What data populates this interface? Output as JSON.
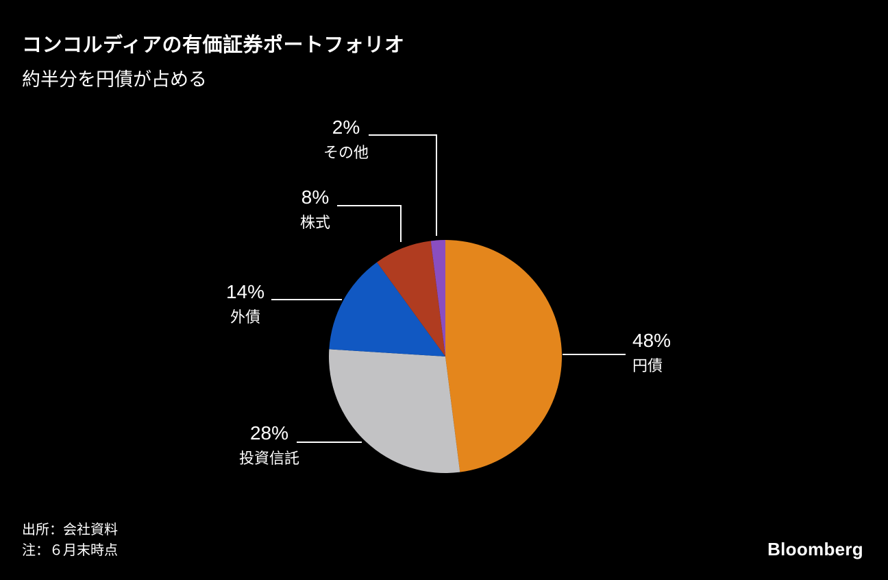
{
  "header": {
    "title": "コンコルディアの有価証券ポートフォリオ",
    "subtitle": "約半分を円債が占める"
  },
  "footer": {
    "source": "出所：会社資料",
    "note": "注：６月末時点",
    "brand": "Bloomberg"
  },
  "chart_data": {
    "type": "pie",
    "title": "コンコルディアの有価証券ポートフォリオ",
    "subtitle": "約半分を円債が占める",
    "unit": "%",
    "start_angle": "12-oclock",
    "direction": "clockwise",
    "background": "#000000",
    "slices": [
      {
        "label": "円債",
        "value": 48,
        "pct_label": "48%",
        "color": "#E4861C"
      },
      {
        "label": "投資信託",
        "value": 28,
        "pct_label": "28%",
        "color": "#C2C2C4"
      },
      {
        "label": "外債",
        "value": 14,
        "pct_label": "14%",
        "color": "#1158C2"
      },
      {
        "label": "株式",
        "value": 8,
        "pct_label": "8%",
        "color": "#B03C20"
      },
      {
        "label": "その他",
        "value": 2,
        "pct_label": "2%",
        "color": "#8A4EC0"
      }
    ]
  }
}
